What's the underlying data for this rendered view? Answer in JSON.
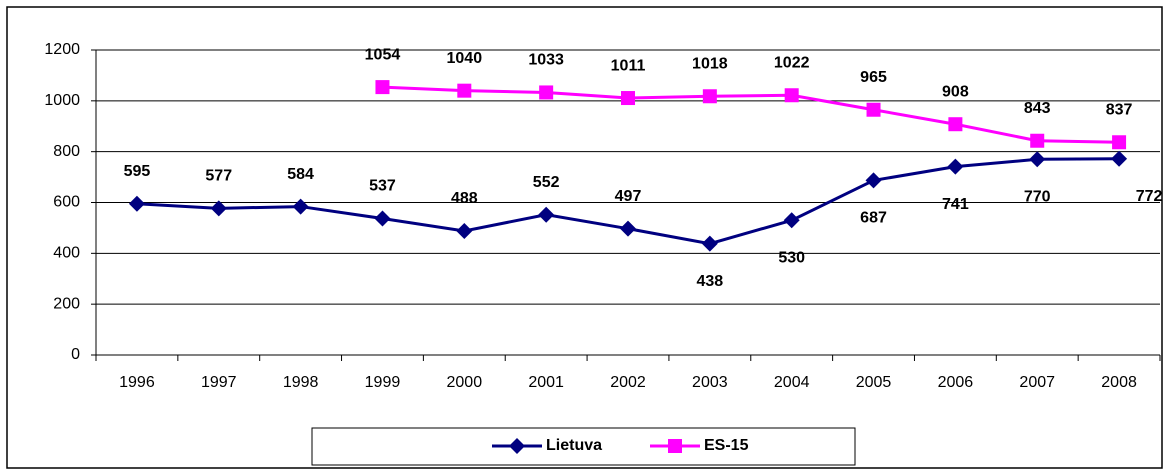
{
  "chart_data": {
    "type": "line",
    "categories": [
      "1996",
      "1997",
      "1998",
      "1999",
      "2000",
      "2001",
      "2002",
      "2003",
      "2004",
      "2005",
      "2006",
      "2007",
      "2008"
    ],
    "series": [
      {
        "name": "Lietuva",
        "color": "#000080",
        "marker": "diamond",
        "values": [
          595,
          577,
          584,
          537,
          488,
          552,
          497,
          438,
          530,
          687,
          741,
          770,
          772
        ]
      },
      {
        "name": "ES-15",
        "color": "#FF00FF",
        "marker": "square",
        "values": [
          null,
          null,
          null,
          1054,
          1040,
          1033,
          1011,
          1018,
          1022,
          965,
          908,
          843,
          837
        ]
      }
    ],
    "ylim": [
      0,
      1200
    ],
    "yticks": [
      0,
      200,
      400,
      600,
      800,
      1000,
      1200
    ],
    "grid": true,
    "legend": "bottom"
  }
}
